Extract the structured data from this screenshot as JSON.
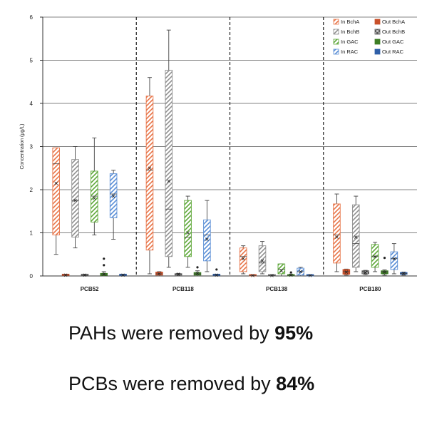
{
  "chart_data": {
    "type": "box",
    "ylabel": "Concentration (µg/L)",
    "ylim": [
      0,
      6
    ],
    "yticks": [
      0,
      1,
      2,
      3,
      4,
      5,
      6
    ],
    "grid": true,
    "legend_position": "top-right",
    "categories": [
      "PCB52",
      "PCB118",
      "PCB138",
      "PCB180"
    ],
    "series": [
      {
        "name": "In BchA",
        "color": "#e8764a",
        "pattern": "hatch",
        "boxes": [
          {
            "min": 0.5,
            "q1": 0.95,
            "median": 2.6,
            "q3": 2.97,
            "max": 2.97,
            "mean": 2.15,
            "outliers": []
          },
          {
            "min": 0.05,
            "q1": 0.6,
            "median": 2.45,
            "q3": 4.17,
            "max": 4.6,
            "mean": 2.5,
            "outliers": []
          },
          {
            "min": 0.05,
            "q1": 0.1,
            "median": 0.45,
            "q3": 0.65,
            "max": 0.7,
            "mean": 0.4,
            "outliers": []
          },
          {
            "min": 0.1,
            "q1": 0.3,
            "median": 0.95,
            "q3": 1.67,
            "max": 1.9,
            "mean": 0.9,
            "outliers": []
          }
        ]
      },
      {
        "name": "Out BchA",
        "color": "#c9502a",
        "pattern": "solid",
        "boxes": [
          {
            "min": 0.0,
            "q1": 0.01,
            "median": 0.02,
            "q3": 0.03,
            "max": 0.04,
            "mean": 0.02,
            "outliers": []
          },
          {
            "min": 0.0,
            "q1": 0.02,
            "median": 0.05,
            "q3": 0.09,
            "max": 0.1,
            "mean": 0.05,
            "outliers": []
          },
          {
            "min": 0.0,
            "q1": 0.0,
            "median": 0.01,
            "q3": 0.02,
            "max": 0.02,
            "mean": 0.01,
            "outliers": []
          },
          {
            "min": 0.02,
            "q1": 0.04,
            "median": 0.1,
            "q3": 0.15,
            "max": 0.16,
            "mean": 0.09,
            "outliers": []
          }
        ]
      },
      {
        "name": "In BchB",
        "color": "#909090",
        "pattern": "hatch",
        "boxes": [
          {
            "min": 0.65,
            "q1": 0.9,
            "median": 1.75,
            "q3": 2.7,
            "max": 3.0,
            "mean": 1.75,
            "outliers": []
          },
          {
            "min": 0.2,
            "q1": 0.45,
            "median": 1.55,
            "q3": 4.77,
            "max": 5.7,
            "mean": 2.2,
            "outliers": []
          },
          {
            "min": 0.05,
            "q1": 0.1,
            "median": 0.3,
            "q3": 0.7,
            "max": 0.8,
            "mean": 0.35,
            "outliers": []
          },
          {
            "min": 0.1,
            "q1": 0.2,
            "median": 0.75,
            "q3": 1.65,
            "max": 1.85,
            "mean": 0.9,
            "outliers": []
          }
        ]
      },
      {
        "name": "Out BchB",
        "color": "#5a5a5a",
        "pattern": "checker",
        "boxes": [
          {
            "min": 0.0,
            "q1": 0.01,
            "median": 0.02,
            "q3": 0.03,
            "max": 0.03,
            "mean": 0.02,
            "outliers": []
          },
          {
            "min": 0.0,
            "q1": 0.02,
            "median": 0.04,
            "q3": 0.05,
            "max": 0.06,
            "mean": 0.04,
            "outliers": []
          },
          {
            "min": 0.0,
            "q1": 0.0,
            "median": 0.01,
            "q3": 0.01,
            "max": 0.02,
            "mean": 0.01,
            "outliers": []
          },
          {
            "min": 0.03,
            "q1": 0.05,
            "median": 0.09,
            "q3": 0.12,
            "max": 0.13,
            "mean": 0.08,
            "outliers": []
          }
        ]
      },
      {
        "name": "In GAC",
        "color": "#5fa83a",
        "pattern": "hatch",
        "boxes": [
          {
            "min": 0.95,
            "q1": 1.25,
            "median": 1.85,
            "q3": 2.43,
            "max": 3.2,
            "mean": 1.8,
            "outliers": []
          },
          {
            "min": 0.2,
            "q1": 0.45,
            "median": 0.9,
            "q3": 1.75,
            "max": 1.85,
            "mean": 1.0,
            "outliers": []
          },
          {
            "min": 0.0,
            "q1": 0.05,
            "median": 0.15,
            "q3": 0.28,
            "max": 0.28,
            "mean": 0.12,
            "outliers": []
          },
          {
            "min": 0.1,
            "q1": 0.2,
            "median": 0.45,
            "q3": 0.73,
            "max": 0.78,
            "mean": 0.45,
            "outliers": []
          }
        ]
      },
      {
        "name": "Out GAC",
        "color": "#3d7d24",
        "pattern": "solid",
        "boxes": [
          {
            "min": 0.0,
            "q1": 0.01,
            "median": 0.03,
            "q3": 0.06,
            "max": 0.1,
            "mean": 0.04,
            "outliers": [
              0.4,
              0.25
            ]
          },
          {
            "min": 0.0,
            "q1": 0.02,
            "median": 0.05,
            "q3": 0.08,
            "max": 0.12,
            "mean": 0.06,
            "outliers": [
              0.2
            ]
          },
          {
            "min": 0.0,
            "q1": 0.0,
            "median": 0.01,
            "q3": 0.02,
            "max": 0.04,
            "mean": 0.02,
            "outliers": [
              0.08
            ]
          },
          {
            "min": 0.02,
            "q1": 0.05,
            "median": 0.1,
            "q3": 0.12,
            "max": 0.14,
            "mean": 0.09,
            "outliers": [
              0.42
            ]
          }
        ]
      },
      {
        "name": "In RAC",
        "color": "#5b8fd6",
        "pattern": "hatch",
        "boxes": [
          {
            "min": 0.85,
            "q1": 1.35,
            "median": 1.9,
            "q3": 2.37,
            "max": 2.45,
            "mean": 1.85,
            "outliers": []
          },
          {
            "min": 0.1,
            "q1": 0.35,
            "median": 0.95,
            "q3": 1.3,
            "max": 1.75,
            "mean": 0.85,
            "outliers": []
          },
          {
            "min": 0.0,
            "q1": 0.02,
            "median": 0.1,
            "q3": 0.18,
            "max": 0.2,
            "mean": 0.1,
            "outliers": []
          },
          {
            "min": 0.05,
            "q1": 0.15,
            "median": 0.4,
            "q3": 0.56,
            "max": 0.75,
            "mean": 0.4,
            "outliers": []
          }
        ]
      },
      {
        "name": "Out RAC",
        "color": "#2f5fa8",
        "pattern": "solid",
        "boxes": [
          {
            "min": 0.0,
            "q1": 0.01,
            "median": 0.02,
            "q3": 0.03,
            "max": 0.04,
            "mean": 0.02,
            "outliers": []
          },
          {
            "min": 0.0,
            "q1": 0.01,
            "median": 0.02,
            "q3": 0.03,
            "max": 0.04,
            "mean": 0.02,
            "outliers": [
              0.15
            ]
          },
          {
            "min": 0.0,
            "q1": 0.0,
            "median": 0.01,
            "q3": 0.01,
            "max": 0.02,
            "mean": 0.01,
            "outliers": []
          },
          {
            "min": 0.02,
            "q1": 0.04,
            "median": 0.06,
            "q3": 0.08,
            "max": 0.09,
            "mean": 0.06,
            "outliers": []
          }
        ]
      }
    ]
  },
  "statements": [
    {
      "text": "PAHs were removed by ",
      "value": "95%"
    },
    {
      "text": "PCBs were removed by ",
      "value": "84%"
    }
  ]
}
